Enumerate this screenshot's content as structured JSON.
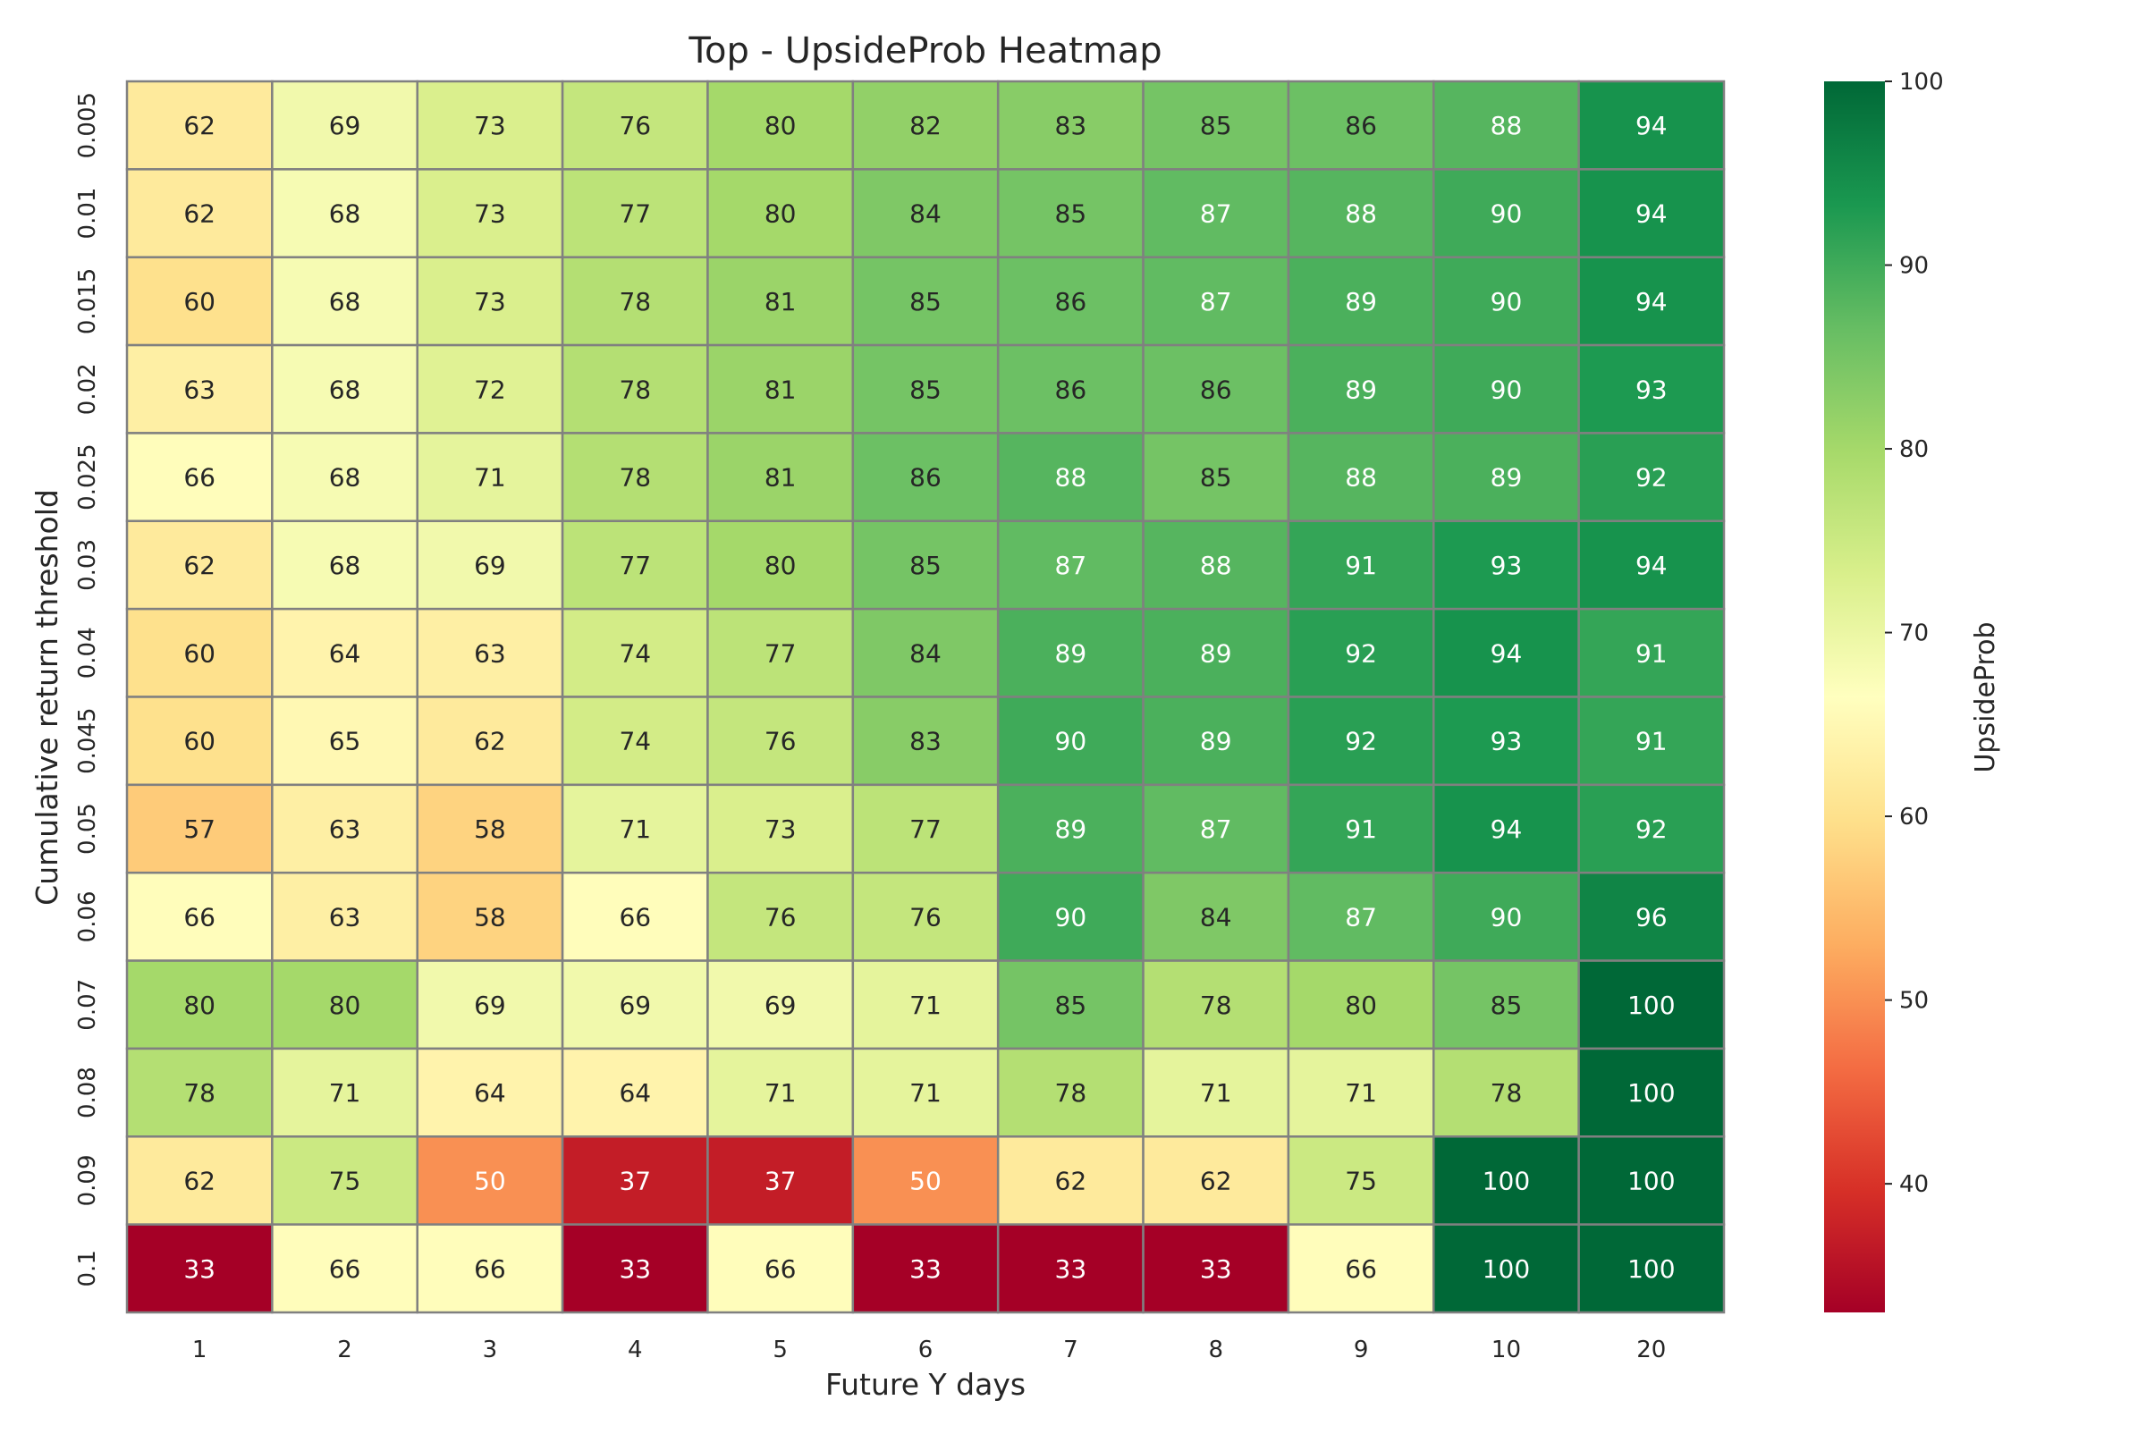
{
  "chart_data": {
    "type": "heatmap",
    "title": "Top - UpsideProb Heatmap",
    "xlabel": "Future Y days",
    "ylabel": "Cumulative return threshold",
    "colorbar_label": "UpsideProb",
    "colormap": "RdYlGn",
    "colorbar_range": [
      33,
      100
    ],
    "colorbar_ticks": [
      "40",
      "50",
      "60",
      "70",
      "80",
      "90",
      "100"
    ],
    "x_categories": [
      "1",
      "2",
      "3",
      "4",
      "5",
      "6",
      "7",
      "8",
      "9",
      "10",
      "20"
    ],
    "y_categories": [
      "0.005",
      "0.01",
      "0.015",
      "0.02",
      "0.025",
      "0.03",
      "0.04",
      "0.045",
      "0.05",
      "0.06",
      "0.07",
      "0.08",
      "0.09",
      "0.1"
    ],
    "values": [
      [
        62,
        69,
        73,
        76,
        80,
        82,
        83,
        85,
        86,
        88,
        94
      ],
      [
        62,
        68,
        73,
        77,
        80,
        84,
        85,
        87,
        88,
        90,
        94
      ],
      [
        60,
        68,
        73,
        78,
        81,
        85,
        86,
        87,
        89,
        90,
        94
      ],
      [
        63,
        68,
        72,
        78,
        81,
        85,
        86,
        86,
        89,
        90,
        93
      ],
      [
        66,
        68,
        71,
        78,
        81,
        86,
        88,
        85,
        88,
        89,
        92
      ],
      [
        62,
        68,
        69,
        77,
        80,
        85,
        87,
        88,
        91,
        93,
        94
      ],
      [
        60,
        64,
        63,
        74,
        77,
        84,
        89,
        89,
        92,
        94,
        91
      ],
      [
        60,
        65,
        62,
        74,
        76,
        83,
        90,
        89,
        92,
        93,
        91
      ],
      [
        57,
        63,
        58,
        71,
        73,
        77,
        89,
        87,
        91,
        94,
        92
      ],
      [
        66,
        63,
        58,
        66,
        76,
        76,
        90,
        84,
        87,
        90,
        96
      ],
      [
        80,
        80,
        69,
        69,
        69,
        71,
        85,
        78,
        80,
        85,
        100
      ],
      [
        78,
        71,
        64,
        64,
        71,
        71,
        78,
        71,
        71,
        78,
        100
      ],
      [
        62,
        75,
        50,
        37,
        37,
        50,
        62,
        62,
        75,
        100,
        100
      ],
      [
        33,
        66,
        66,
        33,
        66,
        33,
        33,
        33,
        66,
        100,
        100
      ]
    ],
    "cell_border_color": "#808080"
  }
}
